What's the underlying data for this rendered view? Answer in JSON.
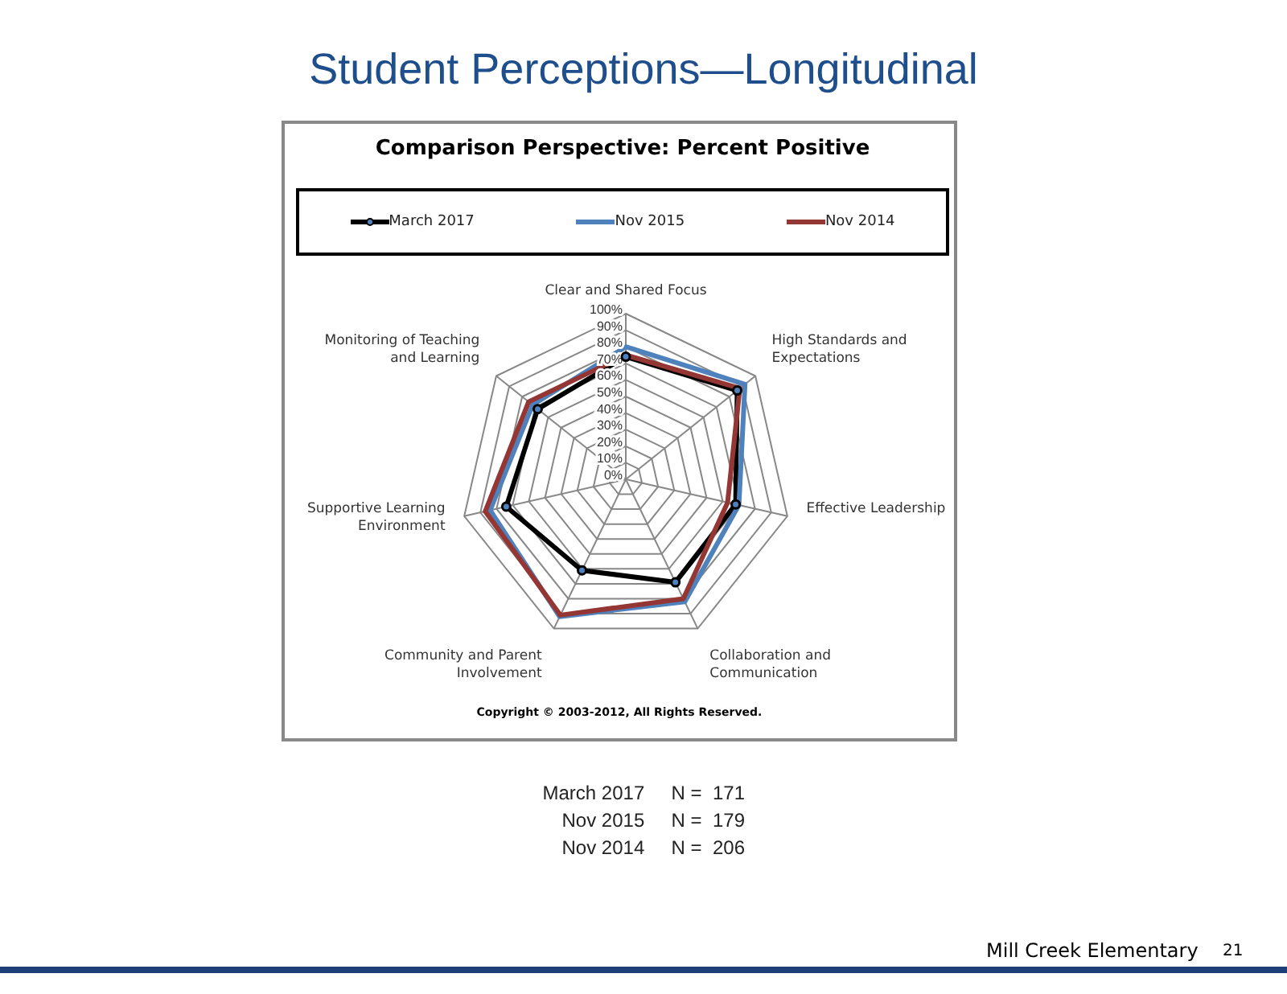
{
  "chart_data": {
    "type": "radar",
    "title": "Student Perceptions—Longitudinal",
    "subtitle": "Comparison Perspective: Percent Positive",
    "categories": [
      "Clear and Shared Focus",
      "High Standards and Expectations",
      "Effective Leadership",
      "Collaboration and Communication",
      "Community and Parent Involvement",
      "Supportive Learning Environment",
      "Monitoring of Teaching and Learning"
    ],
    "series": [
      {
        "name": "March 2017",
        "color": "#000000",
        "marker": "circle",
        "values": [
          74,
          86,
          68,
          69,
          61,
          74,
          68
        ]
      },
      {
        "name": "Nov 2015",
        "color": "#4f81bd",
        "marker": "none",
        "values": [
          80,
          92,
          70,
          82,
          92,
          84,
          72
        ]
      },
      {
        "name": "Nov 2014",
        "color": "#943634",
        "marker": "none",
        "values": [
          75,
          88,
          63,
          80,
          91,
          87,
          75
        ]
      }
    ],
    "ylim": [
      0,
      100
    ],
    "yticks": [
      {
        "value": 0,
        "label": "0%"
      },
      {
        "value": 10,
        "label": "10%"
      },
      {
        "value": 20,
        "label": "20%"
      },
      {
        "value": 30,
        "label": "30%"
      },
      {
        "value": 40,
        "label": "40%"
      },
      {
        "value": 50,
        "label": "50%"
      },
      {
        "value": 60,
        "label": "60%"
      },
      {
        "value": 70,
        "label": "70%"
      },
      {
        "value": 80,
        "label": "80%"
      },
      {
        "value": 90,
        "label": "90%"
      },
      {
        "value": 100,
        "label": "100%"
      }
    ],
    "grid": true,
    "legend": "top",
    "annotations": [
      "Copyright © 2003-2012, All Rights Reserved.",
      "March 2017     N =  171",
      "Nov 2015     N =  179",
      "Nov 2014     N =  206",
      "Mill Creek Elementary",
      "21"
    ]
  }
}
